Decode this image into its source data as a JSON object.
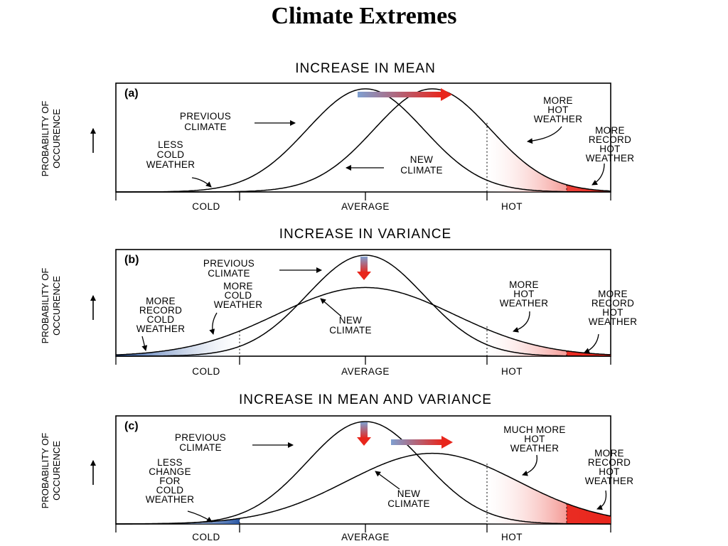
{
  "slide": {
    "title": "Climate Extremes"
  },
  "y_axis_label": [
    "PROBABILITY OF",
    "OCCURENCE"
  ],
  "x_axis_labels": {
    "cold": "COLD",
    "average": "AVERAGE",
    "hot": "HOT"
  },
  "colors": {
    "cold": "#1f4fa0",
    "hot": "#e8261c",
    "shift_arrow_from": "#7f9fd0",
    "shift_arrow_to": "#e8261c"
  },
  "panels": [
    {
      "label": "(a)",
      "title": "INCREASE IN MEAN",
      "previous_climate": [
        "PREVIOUS",
        "CLIMATE"
      ],
      "new_climate": [
        "NEW",
        "CLIMATE"
      ],
      "cold_note": [
        "LESS",
        "COLD",
        "WEATHER"
      ],
      "hot_note": [
        "MORE",
        "HOT",
        "WEATHER"
      ],
      "record_note": [
        "MORE",
        "RECORD",
        "HOT",
        "WEATHER"
      ]
    },
    {
      "label": "(b)",
      "title": "INCREASE IN VARIANCE",
      "previous_climate": [
        "PREVIOUS",
        "CLIMATE"
      ],
      "new_climate": [
        "NEW",
        "CLIMATE"
      ],
      "record_cold_note": [
        "MORE",
        "RECORD",
        "COLD",
        "WEATHER"
      ],
      "cold_note": [
        "MORE",
        "COLD",
        "WEATHER"
      ],
      "hot_note": [
        "MORE",
        "HOT",
        "WEATHER"
      ],
      "record_note": [
        "MORE",
        "RECORD",
        "HOT",
        "WEATHER"
      ]
    },
    {
      "label": "(c)",
      "title": "INCREASE IN MEAN AND VARIANCE",
      "previous_climate": [
        "PREVIOUS",
        "CLIMATE"
      ],
      "new_climate": [
        "NEW",
        "CLIMATE"
      ],
      "cold_note": [
        "LESS",
        "CHANGE",
        "FOR",
        "COLD",
        "WEATHER"
      ],
      "hot_note": [
        "MUCH MORE",
        "HOT",
        "WEATHER"
      ],
      "record_note": [
        "MORE",
        "RECORD",
        "HOT",
        "WEATHER"
      ]
    }
  ]
}
